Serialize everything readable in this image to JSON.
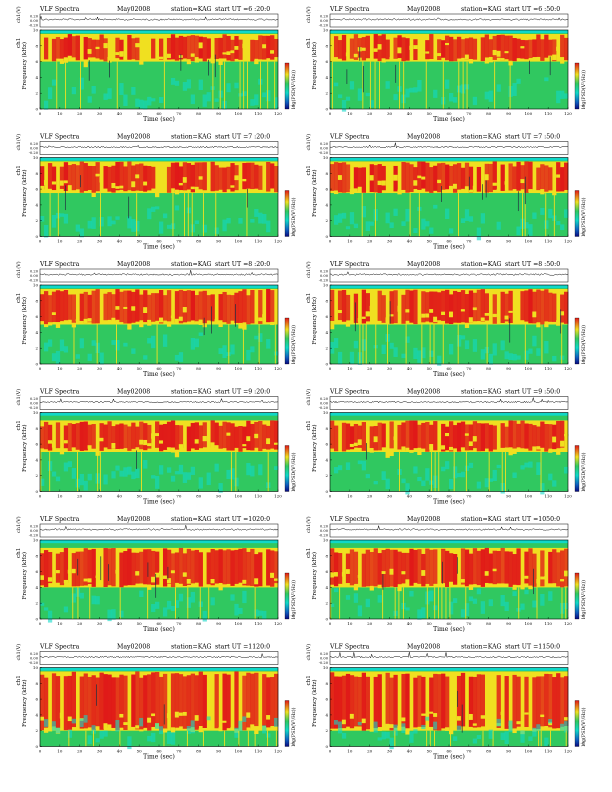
{
  "page": {
    "header_left": "VLF Spectra",
    "date": "May02008",
    "station": "station=KAG",
    "start_prefix": "start  UT ="
  },
  "labels": {
    "ch_axis": "ch1(V)",
    "freq_axis": "Frequency (kHz)",
    "time_axis": "Time (sec)",
    "colorbar_axis": "log(PSD(V²/Hz))",
    "ch_ticks": [
      "0.20",
      "0.00",
      "-0.20"
    ],
    "freq_ticks": [
      "0",
      "2",
      "4",
      "6",
      "8",
      "10"
    ],
    "time_ticks": [
      "0",
      "10",
      "20",
      "30",
      "40",
      "50",
      "60",
      "70",
      "80",
      "90",
      "100",
      "110",
      "120"
    ],
    "colorbar_ticks": [
      "-6",
      "-8"
    ]
  },
  "colors": {
    "low": "#1060c0",
    "cyan": "#10d8c8",
    "green": "#30c860",
    "yellow": "#f0e020",
    "red": "#e01818"
  },
  "chart_data": [
    {
      "type": "heatmap",
      "start_time": "6 :20:0",
      "x_range": [
        0,
        120
      ],
      "y_range": [
        0,
        10
      ],
      "waveform_range": [
        -0.2,
        0.2
      ],
      "intense_band_khz": [
        6,
        9.5
      ]
    },
    {
      "type": "heatmap",
      "start_time": "6 :50:0",
      "x_range": [
        0,
        120
      ],
      "y_range": [
        0,
        10
      ],
      "waveform_range": [
        -0.2,
        0.2
      ],
      "intense_band_khz": [
        6,
        9.5
      ]
    },
    {
      "type": "heatmap",
      "start_time": "7 :20:0",
      "x_range": [
        0,
        120
      ],
      "y_range": [
        0,
        10
      ],
      "waveform_range": [
        -0.2,
        0.2
      ],
      "intense_band_khz": [
        5.5,
        9.5
      ]
    },
    {
      "type": "heatmap",
      "start_time": "7 :50:0",
      "x_range": [
        0,
        120
      ],
      "y_range": [
        0,
        10
      ],
      "waveform_range": [
        -0.2,
        0.2
      ],
      "intense_band_khz": [
        5.5,
        9.5
      ]
    },
    {
      "type": "heatmap",
      "start_time": "8 :20:0",
      "x_range": [
        0,
        120
      ],
      "y_range": [
        0,
        10
      ],
      "waveform_range": [
        -0.2,
        0.2
      ],
      "intense_band_khz": [
        5,
        9.5
      ]
    },
    {
      "type": "heatmap",
      "start_time": "8 :50:0",
      "x_range": [
        0,
        120
      ],
      "y_range": [
        0,
        10
      ],
      "waveform_range": [
        -0.2,
        0.2
      ],
      "intense_band_khz": [
        5,
        9.5
      ]
    },
    {
      "type": "heatmap",
      "start_time": "9 :20:0",
      "x_range": [
        0,
        120
      ],
      "y_range": [
        0,
        10
      ],
      "waveform_range": [
        -0.2,
        0.2
      ],
      "intense_band_khz": [
        5,
        9
      ]
    },
    {
      "type": "heatmap",
      "start_time": "9 :50:0",
      "x_range": [
        0,
        120
      ],
      "y_range": [
        0,
        10
      ],
      "waveform_range": [
        -0.2,
        0.2
      ],
      "intense_band_khz": [
        5,
        9
      ]
    },
    {
      "type": "heatmap",
      "start_time": "1020:0",
      "x_range": [
        0,
        120
      ],
      "y_range": [
        0,
        10
      ],
      "waveform_range": [
        -0.2,
        0.2
      ],
      "intense_band_khz": [
        4,
        9
      ]
    },
    {
      "type": "heatmap",
      "start_time": "1050:0",
      "x_range": [
        0,
        120
      ],
      "y_range": [
        0,
        10
      ],
      "waveform_range": [
        -0.2,
        0.2
      ],
      "intense_band_khz": [
        4,
        9
      ]
    },
    {
      "type": "heatmap",
      "start_time": "1120:0",
      "x_range": [
        0,
        120
      ],
      "y_range": [
        0,
        10
      ],
      "waveform_range": [
        -0.2,
        0.2
      ],
      "intense_band_khz": [
        2,
        9.5
      ]
    },
    {
      "type": "heatmap",
      "start_time": "1150:0",
      "x_range": [
        0,
        120
      ],
      "y_range": [
        0,
        10
      ],
      "waveform_range": [
        -0.2,
        0.2
      ],
      "intense_band_khz": [
        2,
        9.5
      ]
    }
  ]
}
